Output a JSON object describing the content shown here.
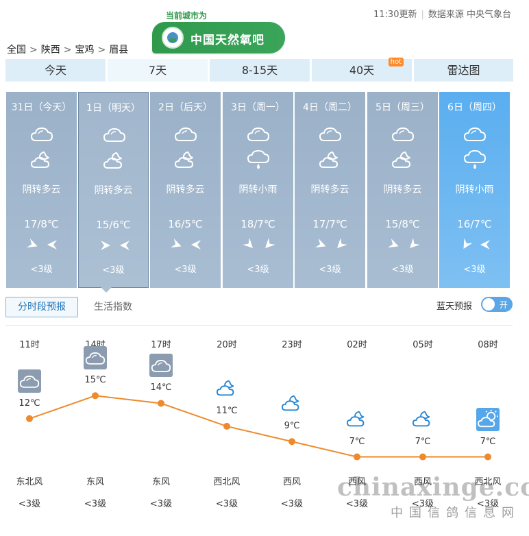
{
  "header": {
    "breadcrumb": [
      "全国",
      "陕西",
      "宝鸡",
      "眉县"
    ],
    "breadcrumb_separator": ">",
    "current_city_label": "当前城市为",
    "brand_name": "中国天然氧吧",
    "update_time": "11:30更新",
    "data_source": "数据来源 中央气象台"
  },
  "tabs": [
    {
      "label": "今天",
      "active": false
    },
    {
      "label": "7天",
      "active": true
    },
    {
      "label": "8-15天",
      "active": false
    },
    {
      "label": "40天",
      "active": false,
      "badge": "hot"
    },
    {
      "label": "雷达图",
      "active": false
    }
  ],
  "days": [
    {
      "date": "31日（今天）",
      "day_icon": "cloudy-icon",
      "night_icon": "partly-cloudy-night-icon",
      "desc": "阴转多云",
      "temp": "17/8℃",
      "wind": "<3级"
    },
    {
      "date": "1日（明天）",
      "day_icon": "cloudy-icon",
      "night_icon": "partly-cloudy-night-icon",
      "desc": "阴转多云",
      "temp": "15/6℃",
      "wind": "<3级"
    },
    {
      "date": "2日（后天）",
      "day_icon": "cloudy-icon",
      "night_icon": "partly-cloudy-night-icon",
      "desc": "阴转多云",
      "temp": "16/5℃",
      "wind": "<3级"
    },
    {
      "date": "3日（周一）",
      "day_icon": "cloudy-icon",
      "night_icon": "light-rain-icon",
      "desc": "阴转小雨",
      "temp": "18/7℃",
      "wind": "<3级"
    },
    {
      "date": "4日（周二）",
      "day_icon": "cloudy-icon",
      "night_icon": "partly-cloudy-night-icon",
      "desc": "阴转多云",
      "temp": "17/7℃",
      "wind": "<3级"
    },
    {
      "date": "5日（周三）",
      "day_icon": "cloudy-icon",
      "night_icon": "partly-cloudy-night-icon",
      "desc": "阴转多云",
      "temp": "15/8℃",
      "wind": "<3级"
    },
    {
      "date": "6日（周四）",
      "day_icon": "cloudy-icon",
      "night_icon": "light-rain-icon",
      "desc": "阴转小雨",
      "temp": "16/7℃",
      "wind": "<3级"
    }
  ],
  "subtabs": {
    "hourly": "分时段预报",
    "life": "生活指数"
  },
  "bluesky": {
    "label": "蓝天预报",
    "toggle_text": "开"
  },
  "hourly": [
    {
      "time": "11时",
      "icon": "cloudy-icon",
      "temp": 12,
      "temp_label": "12℃",
      "wind": "东北风",
      "level": "<3级"
    },
    {
      "time": "14时",
      "icon": "cloudy-icon",
      "temp": 15,
      "temp_label": "15℃",
      "wind": "东风",
      "level": "<3级"
    },
    {
      "time": "17时",
      "icon": "cloudy-icon",
      "temp": 14,
      "temp_label": "14℃",
      "wind": "东风",
      "level": "<3级"
    },
    {
      "time": "20时",
      "icon": "partly-cloudy-night-icon",
      "temp": 11,
      "temp_label": "11℃",
      "wind": "西北风",
      "level": "<3级"
    },
    {
      "time": "23时",
      "icon": "partly-cloudy-night-icon",
      "temp": 9,
      "temp_label": "9℃",
      "wind": "西风",
      "level": "<3级"
    },
    {
      "time": "02时",
      "icon": "partly-cloudy-night-icon",
      "temp": 7,
      "temp_label": "7℃",
      "wind": "西风",
      "level": "<3级"
    },
    {
      "time": "05时",
      "icon": "partly-cloudy-night-icon",
      "temp": 7,
      "temp_label": "7℃",
      "wind": "西风",
      "level": "<3级"
    },
    {
      "time": "08时",
      "icon": "partly-cloudy-day-icon",
      "temp": 7,
      "temp_label": "7℃",
      "wind": "西北风",
      "level": "<3级"
    }
  ],
  "colors": {
    "line": "#ee8a2b",
    "card": "#a3b7cc",
    "card_sunny": "#5aaef0",
    "accent": "#1a73b8"
  },
  "watermark": {
    "domain": "chinaxinge.com",
    "name": "中国信鸽信息网"
  }
}
